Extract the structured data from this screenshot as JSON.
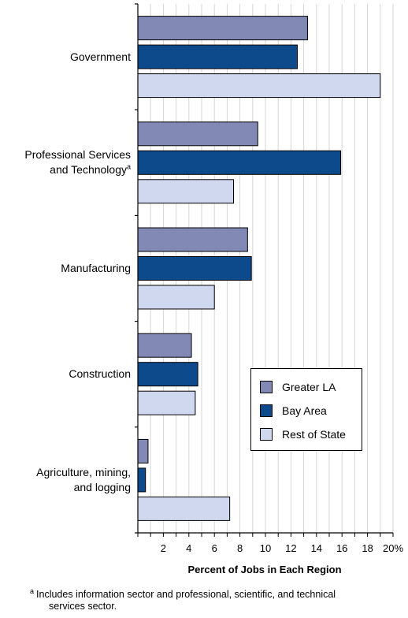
{
  "chart_data": {
    "type": "bar",
    "orientation": "horizontal",
    "categories": [
      {
        "label": "Government",
        "superscript": ""
      },
      {
        "label": "Professional Services and Technology",
        "lines": [
          "Professional Services",
          "and Technology"
        ],
        "superscript": "a"
      },
      {
        "label": "Manufacturing",
        "superscript": ""
      },
      {
        "label": "Construction",
        "superscript": ""
      },
      {
        "label": "Agriculture, mining, and logging",
        "lines": [
          "Agriculture, mining,",
          "and logging"
        ],
        "superscript": ""
      }
    ],
    "series": [
      {
        "name": "Greater LA",
        "color": "#8389b5",
        "values": [
          13.3,
          9.4,
          8.6,
          4.2,
          0.8
        ]
      },
      {
        "name": "Bay Area",
        "color": "#0d4a8c",
        "values": [
          12.5,
          15.9,
          8.9,
          4.7,
          0.6
        ]
      },
      {
        "name": "Rest of State",
        "color": "#cfd8ef",
        "values": [
          19.0,
          7.5,
          6.0,
          4.5,
          7.2
        ]
      }
    ],
    "xlim": [
      0,
      20
    ],
    "x_ticks": [
      "2",
      "4",
      "6",
      "8",
      "10",
      "12",
      "14",
      "16",
      "18",
      "20%"
    ],
    "xlabel": "Percent of Jobs in Each Region",
    "grid": "vertical",
    "legend_position": "bottom-right"
  },
  "footnote": {
    "marker": "a",
    "line1": "Includes information sector and professional, scientific, and technical",
    "line2": "services sector."
  }
}
